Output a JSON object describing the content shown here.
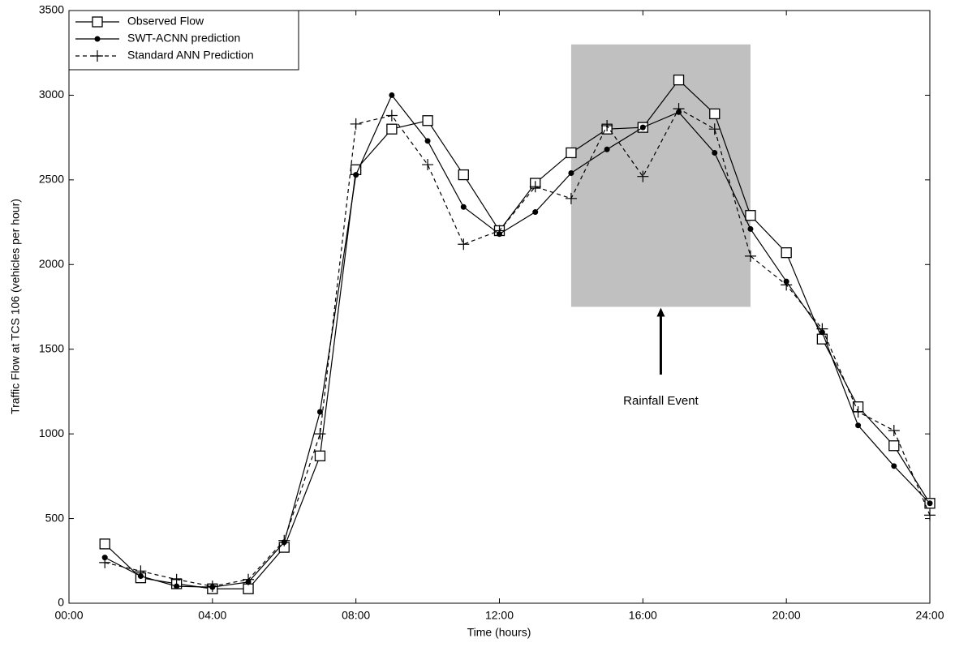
{
  "chart_data": {
    "type": "line",
    "x_label": "Time (hours)",
    "y_label": "Traffic Flow at TCS 106 (vehicles per hour)",
    "x": [
      1,
      2,
      3,
      4,
      5,
      6,
      7,
      8,
      9,
      10,
      11,
      12,
      13,
      14,
      15,
      16,
      17,
      18,
      19,
      20,
      21,
      22,
      23,
      24
    ],
    "series": [
      {
        "name": "Observed Flow",
        "color": "#000000",
        "marker": "square",
        "linestyle": "solid",
        "values": [
          350,
          150,
          115,
          85,
          85,
          330,
          870,
          2560,
          2800,
          2850,
          2530,
          2200,
          2480,
          2660,
          2800,
          2810,
          3090,
          2890,
          2290,
          2070,
          1560,
          1160,
          930,
          590
        ]
      },
      {
        "name": "SWT-ACNN prediction",
        "color": "#000000",
        "marker": "dot",
        "linestyle": "solid",
        "values": [
          270,
          160,
          100,
          95,
          125,
          360,
          1130,
          2530,
          3000,
          2730,
          2340,
          2180,
          2310,
          2540,
          2680,
          2810,
          2900,
          2660,
          2210,
          1900,
          1600,
          1050,
          810,
          590
        ]
      },
      {
        "name": "Standard ANN Prediction",
        "color": "#000000",
        "marker": "plus",
        "linestyle": "dashed",
        "values": [
          240,
          190,
          140,
          100,
          140,
          370,
          1000,
          2830,
          2880,
          2590,
          2120,
          2200,
          2460,
          2390,
          2820,
          2520,
          2920,
          2800,
          2050,
          1880,
          1620,
          1130,
          1020,
          520
        ]
      }
    ],
    "xlim": [
      0,
      24
    ],
    "xticks": [
      {
        "value": 0,
        "label": "00:00"
      },
      {
        "value": 4,
        "label": "04:00"
      },
      {
        "value": 8,
        "label": "08:00"
      },
      {
        "value": 12,
        "label": "12:00"
      },
      {
        "value": 16,
        "label": "16:00"
      },
      {
        "value": 20,
        "label": "20:00"
      },
      {
        "value": 24,
        "label": "24:00"
      }
    ],
    "ylim": [
      0,
      3500
    ],
    "yticks": [
      0,
      500,
      1000,
      1500,
      2000,
      2500,
      3000,
      3500
    ],
    "grid": false,
    "legend": "upper left",
    "shaded_region": {
      "x": [
        14,
        19
      ],
      "y": [
        1750,
        3300
      ],
      "color": "#c0c0c0"
    },
    "annotation": {
      "text": "Rainfall Event",
      "x": 16.5,
      "y": 1350
    }
  }
}
